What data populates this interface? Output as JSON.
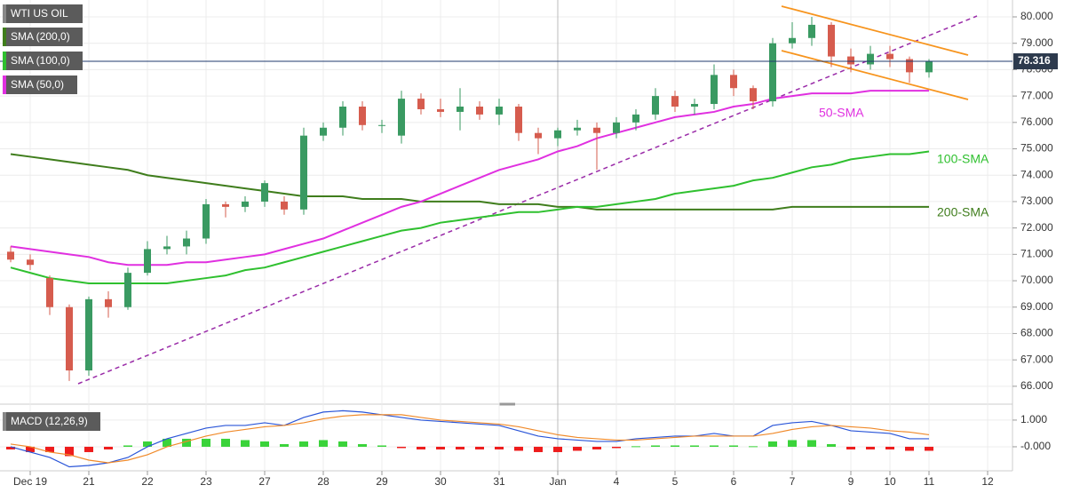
{
  "chart_data": {
    "type": "candlestick",
    "title": "WTI US OIL",
    "categories": [
      null,
      "Dec 19",
      null,
      null,
      "21",
      null,
      null,
      "22",
      null,
      null,
      "23",
      null,
      null,
      "27",
      null,
      null,
      "28",
      null,
      null,
      "29",
      null,
      null,
      "30",
      null,
      null,
      "31",
      null,
      null,
      "Jan",
      null,
      null,
      "4",
      null,
      null,
      "5",
      null,
      null,
      "6",
      null,
      null,
      "7",
      null,
      null,
      "9",
      null,
      "10",
      null,
      "11",
      null,
      null,
      "12"
    ],
    "open": [
      71.1,
      70.8,
      70.1,
      69.0,
      66.6,
      69.3,
      69.0,
      70.3,
      71.2,
      71.3,
      71.6,
      72.9,
      72.8,
      73.0,
      73.0,
      72.7,
      75.5,
      75.8,
      76.6,
      75.9,
      75.5,
      76.9,
      76.5,
      76.4,
      76.6,
      76.3,
      76.6,
      75.6,
      75.4,
      75.7,
      75.8,
      75.6,
      76.0,
      76.3,
      77.0,
      76.6,
      76.7,
      77.8,
      77.3,
      76.8,
      79.0,
      79.2,
      79.7,
      78.5,
      78.2,
      78.6,
      78.4,
      77.9,
      null,
      null,
      null
    ],
    "high": [
      71.3,
      71.0,
      70.2,
      69.1,
      69.4,
      69.6,
      70.5,
      71.5,
      71.7,
      71.9,
      73.1,
      73.0,
      73.2,
      73.8,
      73.2,
      75.8,
      76.0,
      76.8,
      76.8,
      76.1,
      77.2,
      77.1,
      76.9,
      77.3,
      76.8,
      76.9,
      76.7,
      75.8,
      75.8,
      76.1,
      76.0,
      76.2,
      76.5,
      77.3,
      77.2,
      76.9,
      78.2,
      78.0,
      77.4,
      79.2,
      79.8,
      80.0,
      79.8,
      78.8,
      78.9,
      78.9,
      78.5,
      78.4,
      null,
      null,
      null
    ],
    "low": [
      70.7,
      70.4,
      68.7,
      66.2,
      66.4,
      68.6,
      68.9,
      70.2,
      71.0,
      71.0,
      71.4,
      72.4,
      72.6,
      72.8,
      72.5,
      72.5,
      75.3,
      75.5,
      75.7,
      75.6,
      75.2,
      76.3,
      76.2,
      75.7,
      76.1,
      75.9,
      75.3,
      74.8,
      75.1,
      75.5,
      74.2,
      75.4,
      75.7,
      76.1,
      76.4,
      76.3,
      76.5,
      77.0,
      76.5,
      76.6,
      78.8,
      78.9,
      78.1,
      77.9,
      78.0,
      78.1,
      77.5,
      77.7,
      null,
      null,
      null
    ],
    "close": [
      70.8,
      70.6,
      69.0,
      66.6,
      69.3,
      69.0,
      70.3,
      71.2,
      71.3,
      71.6,
      72.9,
      72.8,
      73.0,
      73.7,
      72.7,
      75.5,
      75.8,
      76.6,
      75.9,
      75.9,
      76.9,
      76.5,
      76.4,
      76.6,
      76.3,
      76.6,
      75.6,
      75.4,
      75.7,
      75.8,
      75.6,
      76.0,
      76.3,
      77.0,
      76.6,
      76.7,
      77.8,
      77.3,
      76.8,
      79.0,
      79.2,
      79.7,
      78.5,
      78.2,
      78.6,
      78.4,
      77.9,
      78.3,
      null,
      null,
      null
    ],
    "up_color": "#3a9a62",
    "down_color": "#d65c4e",
    "series": [
      {
        "name": "SMA (200,0)",
        "color": "#3f7d1c",
        "values": [
          74.8,
          74.7,
          74.6,
          74.5,
          74.4,
          74.3,
          74.2,
          74.0,
          73.9,
          73.8,
          73.7,
          73.6,
          73.5,
          73.4,
          73.3,
          73.2,
          73.2,
          73.2,
          73.1,
          73.1,
          73.1,
          73.0,
          73.0,
          73.0,
          73.0,
          72.9,
          72.9,
          72.9,
          72.8,
          72.8,
          72.7,
          72.7,
          72.7,
          72.7,
          72.7,
          72.7,
          72.7,
          72.7,
          72.7,
          72.7,
          72.8,
          72.8,
          72.8,
          72.8,
          72.8,
          72.8,
          72.8,
          72.8,
          null,
          null,
          null
        ]
      },
      {
        "name": "SMA (100,0)",
        "color": "#2fc02f",
        "values": [
          70.5,
          70.3,
          70.1,
          70.0,
          69.9,
          69.9,
          69.9,
          69.9,
          69.9,
          70.0,
          70.1,
          70.2,
          70.4,
          70.5,
          70.7,
          70.9,
          71.1,
          71.3,
          71.5,
          71.7,
          71.9,
          72.0,
          72.2,
          72.3,
          72.4,
          72.5,
          72.6,
          72.6,
          72.7,
          72.8,
          72.8,
          72.9,
          73.0,
          73.1,
          73.3,
          73.4,
          73.5,
          73.6,
          73.8,
          73.9,
          74.1,
          74.3,
          74.4,
          74.6,
          74.7,
          74.8,
          74.8,
          74.9,
          null,
          null,
          null
        ]
      },
      {
        "name": "SMA (50,0)",
        "color": "#e030e0",
        "values": [
          71.3,
          71.2,
          71.1,
          71.0,
          70.9,
          70.7,
          70.6,
          70.6,
          70.6,
          70.7,
          70.7,
          70.8,
          70.9,
          71.0,
          71.2,
          71.4,
          71.6,
          71.9,
          72.2,
          72.5,
          72.8,
          73.0,
          73.3,
          73.6,
          73.9,
          74.2,
          74.4,
          74.6,
          74.9,
          75.1,
          75.4,
          75.6,
          75.8,
          76.0,
          76.2,
          76.3,
          76.4,
          76.6,
          76.7,
          76.9,
          77.0,
          77.1,
          77.1,
          77.1,
          77.2,
          77.2,
          77.2,
          77.2,
          null,
          null,
          null
        ]
      }
    ],
    "annotations": [
      {
        "text": "50-SMA",
        "color": "#e030e0"
      },
      {
        "text": "100-SMA",
        "color": "#2fc02f"
      },
      {
        "text": "200-SMA",
        "color": "#3f7d1c"
      }
    ],
    "last_price": 78.316,
    "ylim": [
      65.49,
      80.64
    ],
    "yticks": [
      {
        "value": 66,
        "label": "66.000"
      },
      {
        "value": 67,
        "label": "67.000"
      },
      {
        "value": 68,
        "label": "68.000"
      },
      {
        "value": 69,
        "label": "69.000"
      },
      {
        "value": 70,
        "label": "70.000"
      },
      {
        "value": 71,
        "label": "71.000"
      },
      {
        "value": 72,
        "label": "72.000"
      },
      {
        "value": 73,
        "label": "73.000"
      },
      {
        "value": 74,
        "label": "74.000"
      },
      {
        "value": 75,
        "label": "75.000"
      },
      {
        "value": 76,
        "label": "76.000"
      },
      {
        "value": 77,
        "label": "77.000"
      },
      {
        "value": 78,
        "label": "78.000"
      },
      {
        "value": 79,
        "label": "79.000"
      },
      {
        "value": 80,
        "label": "80.000"
      }
    ],
    "grid": true,
    "macd": {
      "name": "MACD (12,26,9)",
      "series": [
        {
          "color": "#2a55d8",
          "values": [
            0.0,
            -0.2,
            -0.4,
            -0.75,
            -0.7,
            -0.6,
            -0.4,
            0.0,
            0.3,
            0.5,
            0.7,
            0.8,
            0.8,
            0.9,
            0.8,
            1.1,
            1.3,
            1.35,
            1.3,
            1.2,
            1.1,
            1.0,
            0.95,
            0.9,
            0.85,
            0.8,
            0.6,
            0.4,
            0.3,
            0.25,
            0.2,
            0.2,
            0.3,
            0.35,
            0.4,
            0.4,
            0.5,
            0.4,
            0.4,
            0.8,
            0.9,
            0.95,
            0.8,
            0.6,
            0.55,
            0.5,
            0.3,
            0.3,
            null,
            null,
            null
          ]
        },
        {
          "color": "#f08a2a",
          "values": [
            0.1,
            0.0,
            -0.2,
            -0.3,
            -0.5,
            -0.6,
            -0.5,
            -0.3,
            0.0,
            0.2,
            0.4,
            0.55,
            0.65,
            0.75,
            0.8,
            0.9,
            1.05,
            1.15,
            1.2,
            1.2,
            1.2,
            1.1,
            1.0,
            0.95,
            0.9,
            0.85,
            0.75,
            0.6,
            0.45,
            0.35,
            0.3,
            0.25,
            0.25,
            0.3,
            0.35,
            0.4,
            0.4,
            0.4,
            0.4,
            0.5,
            0.65,
            0.75,
            0.8,
            0.75,
            0.7,
            0.6,
            0.55,
            0.45,
            null,
            null,
            null
          ]
        }
      ],
      "histogram": {
        "up_color": "#3ad33a",
        "down_color": "#ee1c1c",
        "values": [
          -0.1,
          -0.2,
          -0.2,
          -0.35,
          -0.2,
          -0.1,
          0.05,
          0.2,
          0.3,
          0.3,
          0.3,
          0.3,
          0.25,
          0.2,
          0.1,
          0.2,
          0.25,
          0.2,
          0.1,
          0.05,
          -0.05,
          -0.1,
          -0.1,
          -0.1,
          -0.1,
          -0.1,
          -0.15,
          -0.2,
          -0.2,
          -0.15,
          -0.1,
          -0.05,
          0.02,
          0.05,
          0.05,
          0.05,
          0.05,
          0.05,
          0.02,
          0.2,
          0.25,
          0.25,
          0.1,
          -0.1,
          -0.1,
          -0.1,
          -0.15,
          -0.15,
          null,
          null,
          null
        ]
      },
      "ylim": [
        -0.9,
        1.43
      ],
      "yticks": [
        {
          "value": 1,
          "label": "1.000"
        },
        {
          "value": 0,
          "label": "-0.000"
        }
      ]
    }
  }
}
